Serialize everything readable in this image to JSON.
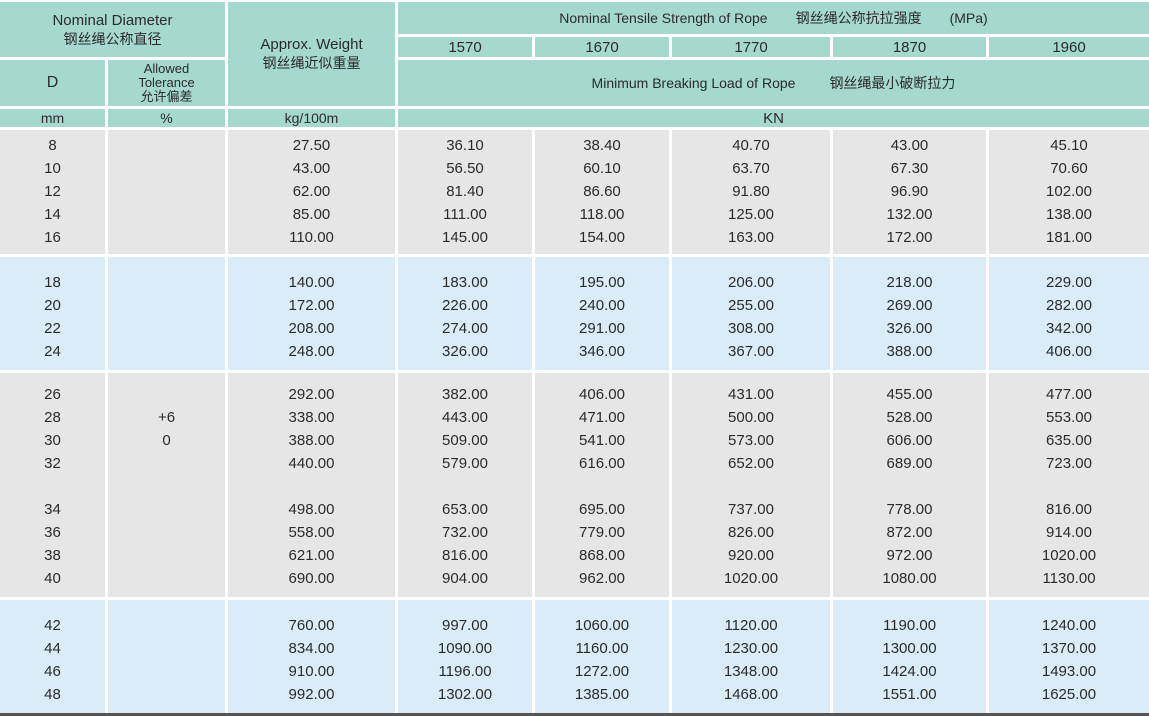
{
  "colors": {
    "header_teal": "#a5d8ce",
    "band_grey": "#e7e6e7",
    "band_blue": "#d9ecf8",
    "separator_white": "#ffffff",
    "text": "#2b2b2b",
    "bottom_rule": "#555555"
  },
  "header": {
    "diameter_en": "Nominal Diameter",
    "diameter_zh": "钢丝绳公称直径",
    "weight_en": "Approx. Weight",
    "weight_zh": "钢丝绳近似重量",
    "tensile_en": "Nominal Tensile Strength of Rope",
    "tensile_zh": "钢丝绳公称抗拉强度",
    "tensile_unit": "(MPa)",
    "grades": [
      "1570",
      "1670",
      "1770",
      "1870",
      "1960"
    ],
    "d_label": "D",
    "tolerance_line1": "Allowed",
    "tolerance_line2": "Tolerance",
    "tolerance_zh": "允许偏差",
    "breaking_en": "Minimum Breaking Load of Rope",
    "breaking_zh": "钢丝绳最小破断拉力",
    "unit_mm": "mm",
    "unit_pct": "%",
    "unit_weight": "kg/100m",
    "unit_load": "KN"
  },
  "groups": [
    {
      "band": "grey",
      "rows": [
        {
          "d": "8",
          "tol": "",
          "w": "27.50",
          "loads": [
            "36.10",
            "38.40",
            "40.70",
            "43.00",
            "45.10"
          ]
        },
        {
          "d": "10",
          "tol": "",
          "w": "43.00",
          "loads": [
            "56.50",
            "60.10",
            "63.70",
            "67.30",
            "70.60"
          ]
        },
        {
          "d": "12",
          "tol": "",
          "w": "62.00",
          "loads": [
            "81.40",
            "86.60",
            "91.80",
            "96.90",
            "102.00"
          ]
        },
        {
          "d": "14",
          "tol": "",
          "w": "85.00",
          "loads": [
            "111.00",
            "118.00",
            "125.00",
            "132.00",
            "138.00"
          ]
        },
        {
          "d": "16",
          "tol": "",
          "w": "110.00",
          "loads": [
            "145.00",
            "154.00",
            "163.00",
            "172.00",
            "181.00"
          ]
        }
      ]
    },
    {
      "band": "blue",
      "rows": [
        {
          "d": "18",
          "tol": "",
          "w": "140.00",
          "loads": [
            "183.00",
            "195.00",
            "206.00",
            "218.00",
            "229.00"
          ]
        },
        {
          "d": "20",
          "tol": "",
          "w": "172.00",
          "loads": [
            "226.00",
            "240.00",
            "255.00",
            "269.00",
            "282.00"
          ]
        },
        {
          "d": "22",
          "tol": "",
          "w": "208.00",
          "loads": [
            "274.00",
            "291.00",
            "308.00",
            "326.00",
            "342.00"
          ]
        },
        {
          "d": "24",
          "tol": "",
          "w": "248.00",
          "loads": [
            "326.00",
            "346.00",
            "367.00",
            "388.00",
            "406.00"
          ]
        }
      ]
    },
    {
      "band": "grey",
      "rows": [
        {
          "d": "26",
          "tol": "",
          "w": "292.00",
          "loads": [
            "382.00",
            "406.00",
            "431.00",
            "455.00",
            "477.00"
          ]
        },
        {
          "d": "28",
          "tol": "+6",
          "w": "338.00",
          "loads": [
            "443.00",
            "471.00",
            "500.00",
            "528.00",
            "553.00"
          ]
        },
        {
          "d": "30",
          "tol": "0",
          "w": "388.00",
          "loads": [
            "509.00",
            "541.00",
            "573.00",
            "606.00",
            "635.00"
          ]
        },
        {
          "d": "32",
          "tol": "",
          "w": "440.00",
          "loads": [
            "579.00",
            "616.00",
            "652.00",
            "689.00",
            "723.00"
          ]
        },
        {
          "d": "",
          "tol": "",
          "w": "",
          "loads": [
            "",
            "",
            "",
            "",
            ""
          ]
        },
        {
          "d": "34",
          "tol": "",
          "w": "498.00",
          "loads": [
            "653.00",
            "695.00",
            "737.00",
            "778.00",
            "816.00"
          ]
        },
        {
          "d": "36",
          "tol": "",
          "w": "558.00",
          "loads": [
            "732.00",
            "779.00",
            "826.00",
            "872.00",
            "914.00"
          ]
        },
        {
          "d": "38",
          "tol": "",
          "w": "621.00",
          "loads": [
            "816.00",
            "868.00",
            "920.00",
            "972.00",
            "1020.00"
          ]
        },
        {
          "d": "40",
          "tol": "",
          "w": "690.00",
          "loads": [
            "904.00",
            "962.00",
            "1020.00",
            "1080.00",
            "1130.00"
          ]
        }
      ]
    },
    {
      "band": "blue",
      "rows": [
        {
          "d": "42",
          "tol": "",
          "w": "760.00",
          "loads": [
            "997.00",
            "1060.00",
            "1120.00",
            "1190.00",
            "1240.00"
          ]
        },
        {
          "d": "44",
          "tol": "",
          "w": "834.00",
          "loads": [
            "1090.00",
            "1160.00",
            "1230.00",
            "1300.00",
            "1370.00"
          ]
        },
        {
          "d": "46",
          "tol": "",
          "w": "910.00",
          "loads": [
            "1196.00",
            "1272.00",
            "1348.00",
            "1424.00",
            "1493.00"
          ]
        },
        {
          "d": "48",
          "tol": "",
          "w": "992.00",
          "loads": [
            "1302.00",
            "1385.00",
            "1468.00",
            "1551.00",
            "1625.00"
          ]
        }
      ]
    }
  ]
}
